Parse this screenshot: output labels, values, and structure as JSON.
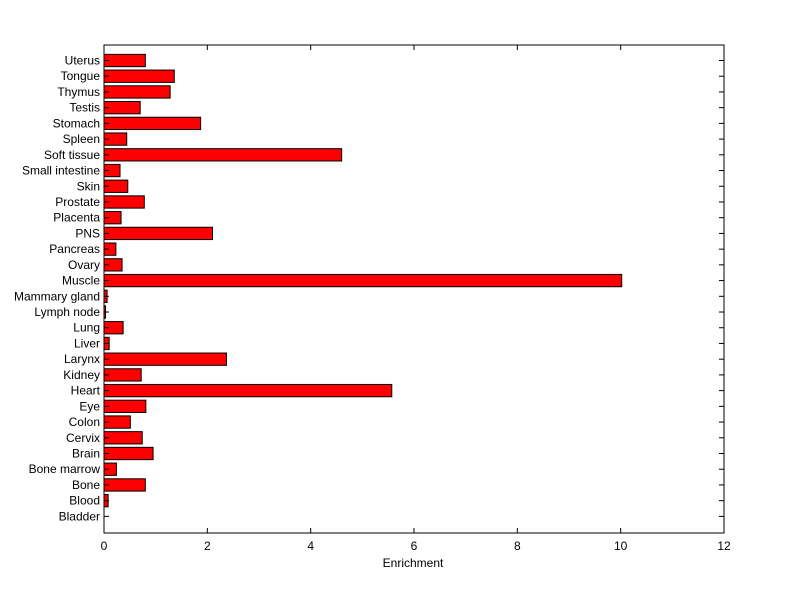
{
  "chart_data": {
    "type": "bar",
    "orientation": "horizontal",
    "title": "",
    "xlabel": "Enrichment",
    "ylabel": "",
    "xlim": [
      0,
      12
    ],
    "xticks": [
      "0",
      "2",
      "4",
      "6",
      "8",
      "10",
      "12"
    ],
    "grid": false,
    "bar_color": "#ff0000",
    "bar_edge_color": "#000000",
    "categories": [
      "Uterus",
      "Tongue",
      "Thymus",
      "Testis",
      "Stomach",
      "Spleen",
      "Soft tissue",
      "Small intestine",
      "Skin",
      "Prostate",
      "Placenta",
      "PNS",
      "Pancreas",
      "Ovary",
      "Muscle",
      "Mammary gland",
      "Lymph node",
      "Lung",
      "Liver",
      "Larynx",
      "Kidney",
      "Heart",
      "Eye",
      "Colon",
      "Cervix",
      "Brain",
      "Bone marrow",
      "Bone",
      "Blood",
      "Bladder"
    ],
    "values": [
      0.8,
      1.36,
      1.28,
      0.7,
      1.87,
      0.44,
      4.6,
      0.31,
      0.46,
      0.78,
      0.33,
      2.1,
      0.23,
      0.35,
      10.02,
      0.06,
      0.03,
      0.37,
      0.1,
      2.37,
      0.72,
      5.57,
      0.81,
      0.51,
      0.74,
      0.95,
      0.24,
      0.8,
      0.08,
      0.0
    ]
  }
}
